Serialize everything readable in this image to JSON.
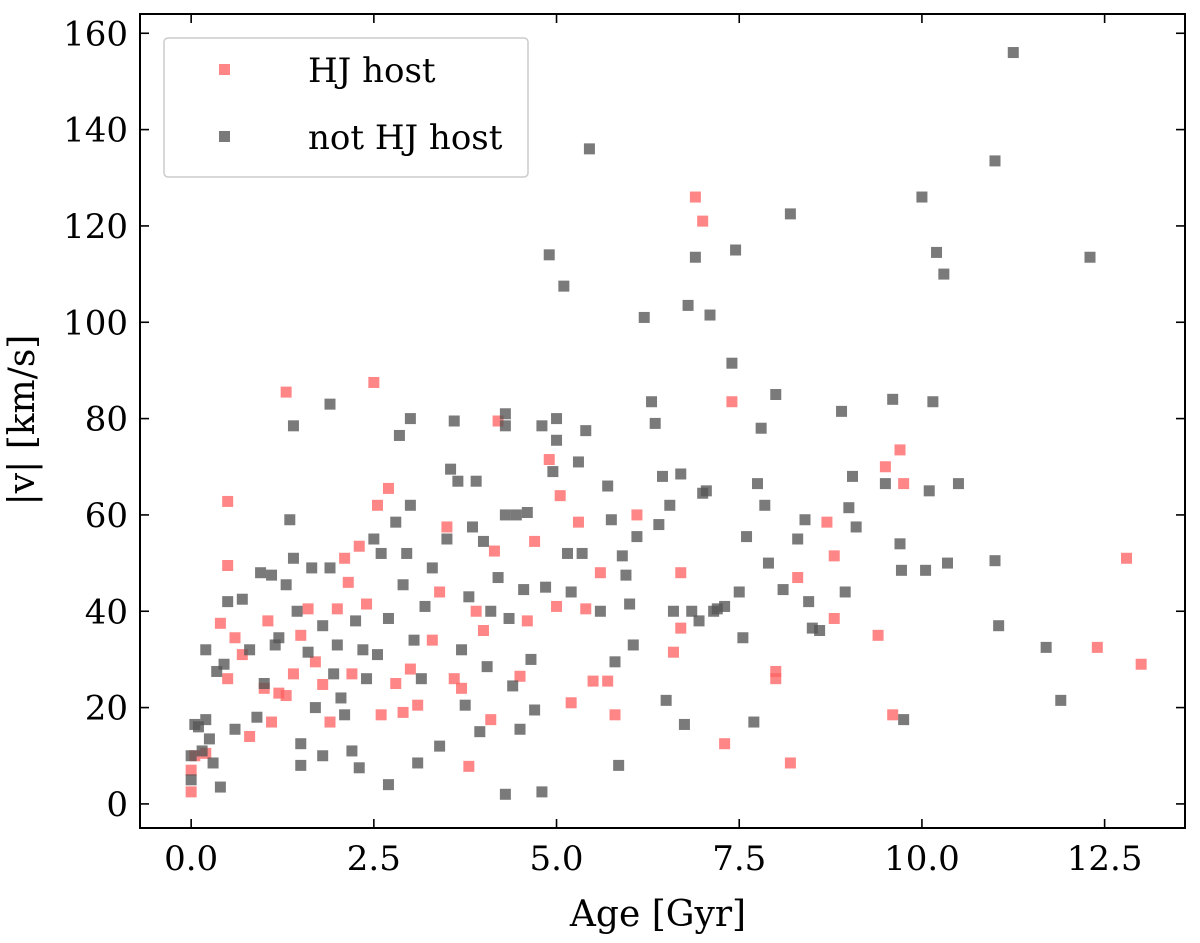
{
  "chart_data": {
    "type": "scatter",
    "title": "",
    "xlabel": "Age [Gyr]",
    "ylabel": "|v| [km/s]",
    "xlim": [
      -0.7,
      13.6
    ],
    "ylim": [
      -5,
      164
    ],
    "xticks": [
      0.0,
      2.5,
      5.0,
      7.5,
      10.0,
      12.5
    ],
    "xtick_labels": [
      "0.0",
      "2.5",
      "5.0",
      "7.5",
      "10.0",
      "12.5"
    ],
    "yticks": [
      0,
      20,
      40,
      60,
      80,
      100,
      120,
      140,
      160
    ],
    "ytick_labels": [
      "0",
      "20",
      "40",
      "60",
      "80",
      "100",
      "120",
      "140",
      "160"
    ],
    "grid": false,
    "legend_position": "top-left",
    "series": [
      {
        "name": "HJ host",
        "color": "#ff6464",
        "points": [
          [
            0.0,
            2.5
          ],
          [
            0.0,
            7
          ],
          [
            0.05,
            10
          ],
          [
            0.2,
            10.5
          ],
          [
            0.5,
            62.8
          ],
          [
            0.5,
            49.5
          ],
          [
            0.5,
            26
          ],
          [
            0.4,
            37.5
          ],
          [
            0.6,
            34.5
          ],
          [
            0.7,
            31
          ],
          [
            0.8,
            14
          ],
          [
            1.0,
            24
          ],
          [
            1.05,
            38
          ],
          [
            1.1,
            17
          ],
          [
            1.2,
            23
          ],
          [
            1.3,
            22.5
          ],
          [
            1.3,
            85.5
          ],
          [
            1.4,
            27
          ],
          [
            1.5,
            35
          ],
          [
            1.6,
            40.5
          ],
          [
            1.7,
            29.5
          ],
          [
            1.8,
            24.8
          ],
          [
            1.9,
            17
          ],
          [
            2.0,
            40.5
          ],
          [
            2.1,
            51
          ],
          [
            2.15,
            46
          ],
          [
            2.2,
            27
          ],
          [
            2.3,
            53.5
          ],
          [
            2.4,
            41.5
          ],
          [
            2.5,
            87.5
          ],
          [
            2.55,
            62
          ],
          [
            2.6,
            18.5
          ],
          [
            2.7,
            65.5
          ],
          [
            2.8,
            25
          ],
          [
            2.9,
            19
          ],
          [
            3.0,
            28
          ],
          [
            3.1,
            20.5
          ],
          [
            3.3,
            34
          ],
          [
            3.4,
            44
          ],
          [
            3.5,
            57.5
          ],
          [
            3.6,
            26
          ],
          [
            3.7,
            24
          ],
          [
            3.8,
            7.8
          ],
          [
            3.9,
            40
          ],
          [
            4.0,
            36
          ],
          [
            4.1,
            17.5
          ],
          [
            4.15,
            52.5
          ],
          [
            4.2,
            79.5
          ],
          [
            4.5,
            26.5
          ],
          [
            4.6,
            38
          ],
          [
            4.7,
            54.5
          ],
          [
            4.9,
            71.5
          ],
          [
            5.0,
            41
          ],
          [
            5.05,
            64
          ],
          [
            5.2,
            21
          ],
          [
            5.3,
            58.5
          ],
          [
            5.4,
            40.5
          ],
          [
            5.5,
            25.5
          ],
          [
            5.6,
            48
          ],
          [
            5.7,
            25.5
          ],
          [
            5.8,
            18.5
          ],
          [
            6.1,
            60
          ],
          [
            6.6,
            31.5
          ],
          [
            6.7,
            36.5
          ],
          [
            6.7,
            48
          ],
          [
            6.9,
            126
          ],
          [
            7.0,
            121
          ],
          [
            7.3,
            12.5
          ],
          [
            7.4,
            83.5
          ],
          [
            8.0,
            27.5
          ],
          [
            8.0,
            26
          ],
          [
            8.2,
            8.5
          ],
          [
            8.3,
            47
          ],
          [
            8.7,
            58.5
          ],
          [
            8.8,
            51.5
          ],
          [
            8.8,
            38.5
          ],
          [
            9.4,
            35
          ],
          [
            9.5,
            70
          ],
          [
            9.6,
            18.5
          ],
          [
            9.7,
            73.5
          ],
          [
            9.75,
            66.5
          ],
          [
            12.4,
            32.5
          ],
          [
            12.8,
            51
          ],
          [
            13.0,
            29
          ]
        ]
      },
      {
        "name": "not HJ host",
        "color": "#555555",
        "points": [
          [
            0.0,
            5
          ],
          [
            0.0,
            10
          ],
          [
            0.05,
            16.5
          ],
          [
            0.1,
            16
          ],
          [
            0.15,
            11
          ],
          [
            0.2,
            32
          ],
          [
            0.2,
            17.5
          ],
          [
            0.25,
            13.5
          ],
          [
            0.3,
            8.5
          ],
          [
            0.35,
            27.5
          ],
          [
            0.4,
            3.5
          ],
          [
            0.45,
            29
          ],
          [
            0.5,
            42
          ],
          [
            0.6,
            15.5
          ],
          [
            0.7,
            42.5
          ],
          [
            0.8,
            32
          ],
          [
            0.9,
            18
          ],
          [
            0.95,
            48
          ],
          [
            1.0,
            25
          ],
          [
            1.1,
            47.5
          ],
          [
            1.15,
            33
          ],
          [
            1.2,
            34.5
          ],
          [
            1.3,
            45.5
          ],
          [
            1.35,
            59
          ],
          [
            1.4,
            78.5
          ],
          [
            1.4,
            51
          ],
          [
            1.45,
            40
          ],
          [
            1.5,
            12.5
          ],
          [
            1.5,
            8
          ],
          [
            1.6,
            31.5
          ],
          [
            1.65,
            49
          ],
          [
            1.7,
            20
          ],
          [
            1.8,
            37
          ],
          [
            1.8,
            10
          ],
          [
            1.9,
            83
          ],
          [
            1.9,
            49
          ],
          [
            1.95,
            27
          ],
          [
            2.0,
            33
          ],
          [
            2.05,
            22
          ],
          [
            2.1,
            18.5
          ],
          [
            2.2,
            11
          ],
          [
            2.25,
            38
          ],
          [
            2.3,
            7.5
          ],
          [
            2.35,
            32
          ],
          [
            2.4,
            26
          ],
          [
            2.5,
            55
          ],
          [
            2.55,
            31
          ],
          [
            2.6,
            52
          ],
          [
            2.7,
            4
          ],
          [
            2.7,
            38.5
          ],
          [
            2.8,
            58.5
          ],
          [
            2.85,
            76.5
          ],
          [
            2.9,
            45.5
          ],
          [
            2.95,
            52
          ],
          [
            3.0,
            80
          ],
          [
            3.0,
            62
          ],
          [
            3.05,
            34
          ],
          [
            3.1,
            8.5
          ],
          [
            3.15,
            26
          ],
          [
            3.2,
            41
          ],
          [
            3.3,
            49
          ],
          [
            3.4,
            12
          ],
          [
            3.5,
            55
          ],
          [
            3.55,
            69.5
          ],
          [
            3.6,
            79.5
          ],
          [
            3.65,
            67
          ],
          [
            3.7,
            32
          ],
          [
            3.75,
            20.5
          ],
          [
            3.8,
            43
          ],
          [
            3.85,
            57.5
          ],
          [
            3.9,
            67
          ],
          [
            3.95,
            15
          ],
          [
            4.0,
            54.5
          ],
          [
            4.05,
            28.5
          ],
          [
            4.1,
            40
          ],
          [
            4.2,
            47
          ],
          [
            4.3,
            81
          ],
          [
            4.3,
            78.5
          ],
          [
            4.3,
            60
          ],
          [
            4.35,
            38.5
          ],
          [
            4.4,
            24.5
          ],
          [
            4.45,
            60
          ],
          [
            4.5,
            15.5
          ],
          [
            4.55,
            44.5
          ],
          [
            4.6,
            60.5
          ],
          [
            4.65,
            30
          ],
          [
            4.7,
            19.5
          ],
          [
            4.8,
            78.5
          ],
          [
            4.85,
            45
          ],
          [
            4.9,
            114
          ],
          [
            4.95,
            69
          ],
          [
            5.0,
            80
          ],
          [
            5.0,
            75.5
          ],
          [
            5.1,
            107.5
          ],
          [
            5.15,
            52
          ],
          [
            5.2,
            44
          ],
          [
            5.3,
            71
          ],
          [
            5.35,
            52
          ],
          [
            5.4,
            77.5
          ],
          [
            5.45,
            136
          ],
          [
            5.6,
            40
          ],
          [
            5.7,
            66
          ],
          [
            5.75,
            59
          ],
          [
            5.8,
            29.5
          ],
          [
            5.85,
            8
          ],
          [
            5.9,
            51.5
          ],
          [
            5.95,
            47.5
          ],
          [
            6.0,
            41.5
          ],
          [
            6.05,
            33
          ],
          [
            6.1,
            55.5
          ],
          [
            6.2,
            101
          ],
          [
            6.3,
            83.5
          ],
          [
            6.35,
            79
          ],
          [
            6.4,
            58
          ],
          [
            6.45,
            68
          ],
          [
            6.5,
            21.5
          ],
          [
            6.55,
            62
          ],
          [
            6.6,
            40
          ],
          [
            6.7,
            68.5
          ],
          [
            6.75,
            16.5
          ],
          [
            6.8,
            103.5
          ],
          [
            6.85,
            40
          ],
          [
            6.9,
            113.5
          ],
          [
            6.95,
            38
          ],
          [
            7.0,
            64.5
          ],
          [
            7.05,
            65
          ],
          [
            7.1,
            101.5
          ],
          [
            7.15,
            40
          ],
          [
            7.2,
            40.5
          ],
          [
            7.3,
            41
          ],
          [
            7.4,
            91.5
          ],
          [
            7.45,
            115
          ],
          [
            7.5,
            44
          ],
          [
            7.55,
            34.5
          ],
          [
            7.6,
            55.5
          ],
          [
            7.7,
            17
          ],
          [
            7.75,
            66.5
          ],
          [
            7.8,
            78
          ],
          [
            7.85,
            62
          ],
          [
            7.9,
            50
          ],
          [
            8.0,
            85
          ],
          [
            8.1,
            44.5
          ],
          [
            8.2,
            122.5
          ],
          [
            8.3,
            55
          ],
          [
            8.4,
            59
          ],
          [
            8.45,
            42
          ],
          [
            8.5,
            36.5
          ],
          [
            8.6,
            36
          ],
          [
            8.9,
            81.5
          ],
          [
            8.95,
            44
          ],
          [
            9.0,
            61.5
          ],
          [
            9.05,
            68
          ],
          [
            9.1,
            57.5
          ],
          [
            9.5,
            66.5
          ],
          [
            9.6,
            84
          ],
          [
            9.7,
            54
          ],
          [
            9.72,
            48.5
          ],
          [
            9.75,
            17.5
          ],
          [
            10.0,
            126
          ],
          [
            10.05,
            48.5
          ],
          [
            10.1,
            65
          ],
          [
            10.15,
            83.5
          ],
          [
            10.2,
            114.5
          ],
          [
            10.3,
            110
          ],
          [
            10.35,
            50
          ],
          [
            10.5,
            66.5
          ],
          [
            11.0,
            133.5
          ],
          [
            11.0,
            50.5
          ],
          [
            11.05,
            37
          ],
          [
            11.25,
            156
          ],
          [
            11.7,
            32.5
          ],
          [
            11.9,
            21.5
          ],
          [
            12.3,
            113.5
          ],
          [
            4.3,
            2
          ],
          [
            4.8,
            2.5
          ]
        ]
      }
    ]
  }
}
